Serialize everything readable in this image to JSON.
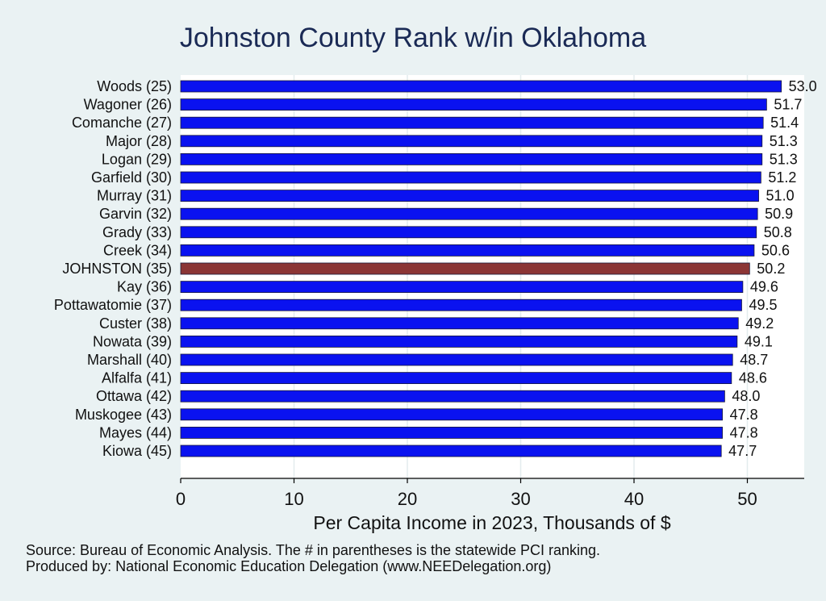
{
  "chart_data": {
    "type": "bar",
    "orientation": "horizontal",
    "title": "Johnston County Rank w/in Oklahoma",
    "xlabel": "Per Capita Income in 2023, Thousands of $",
    "ylabel": "",
    "xlim": [
      0,
      55
    ],
    "xticks": [
      "0",
      "10",
      "20",
      "30",
      "40",
      "50"
    ],
    "categories": [
      "Woods (25)",
      "Wagoner (26)",
      "Comanche (27)",
      "Major (28)",
      "Logan (29)",
      "Garfield (30)",
      "Murray (31)",
      "Garvin (32)",
      "Grady (33)",
      "Creek (34)",
      "JOHNSTON (35)",
      "Kay (36)",
      "Pottawatomie (37)",
      "Custer (38)",
      "Nowata (39)",
      "Marshall (40)",
      "Alfalfa (41)",
      "Ottawa (42)",
      "Muskogee (43)",
      "Mayes (44)",
      "Kiowa (45)"
    ],
    "values": [
      53.0,
      51.7,
      51.4,
      51.3,
      51.3,
      51.2,
      51.0,
      50.9,
      50.8,
      50.6,
      50.2,
      49.6,
      49.5,
      49.2,
      49.1,
      48.7,
      48.6,
      48.0,
      47.8,
      47.8,
      47.7
    ],
    "value_labels": [
      "53.0",
      "51.7",
      "51.4",
      "51.3",
      "51.3",
      "51.2",
      "51.0",
      "50.9",
      "50.8",
      "50.6",
      "50.2",
      "49.6",
      "49.5",
      "49.2",
      "49.1",
      "48.7",
      "48.6",
      "48.0",
      "47.8",
      "47.8",
      "47.7"
    ],
    "highlight_index": 10,
    "bar_color": "#0a12f0",
    "highlight_color": "#8b3535",
    "grid": true,
    "legend": "none"
  },
  "footer": {
    "source": "Source: Bureau of Economic Analysis. The # in parentheses is the statewide PCI ranking.",
    "produced_by": "Produced by: National Economic Education Delegation (www.NEEDelegation.org)"
  }
}
